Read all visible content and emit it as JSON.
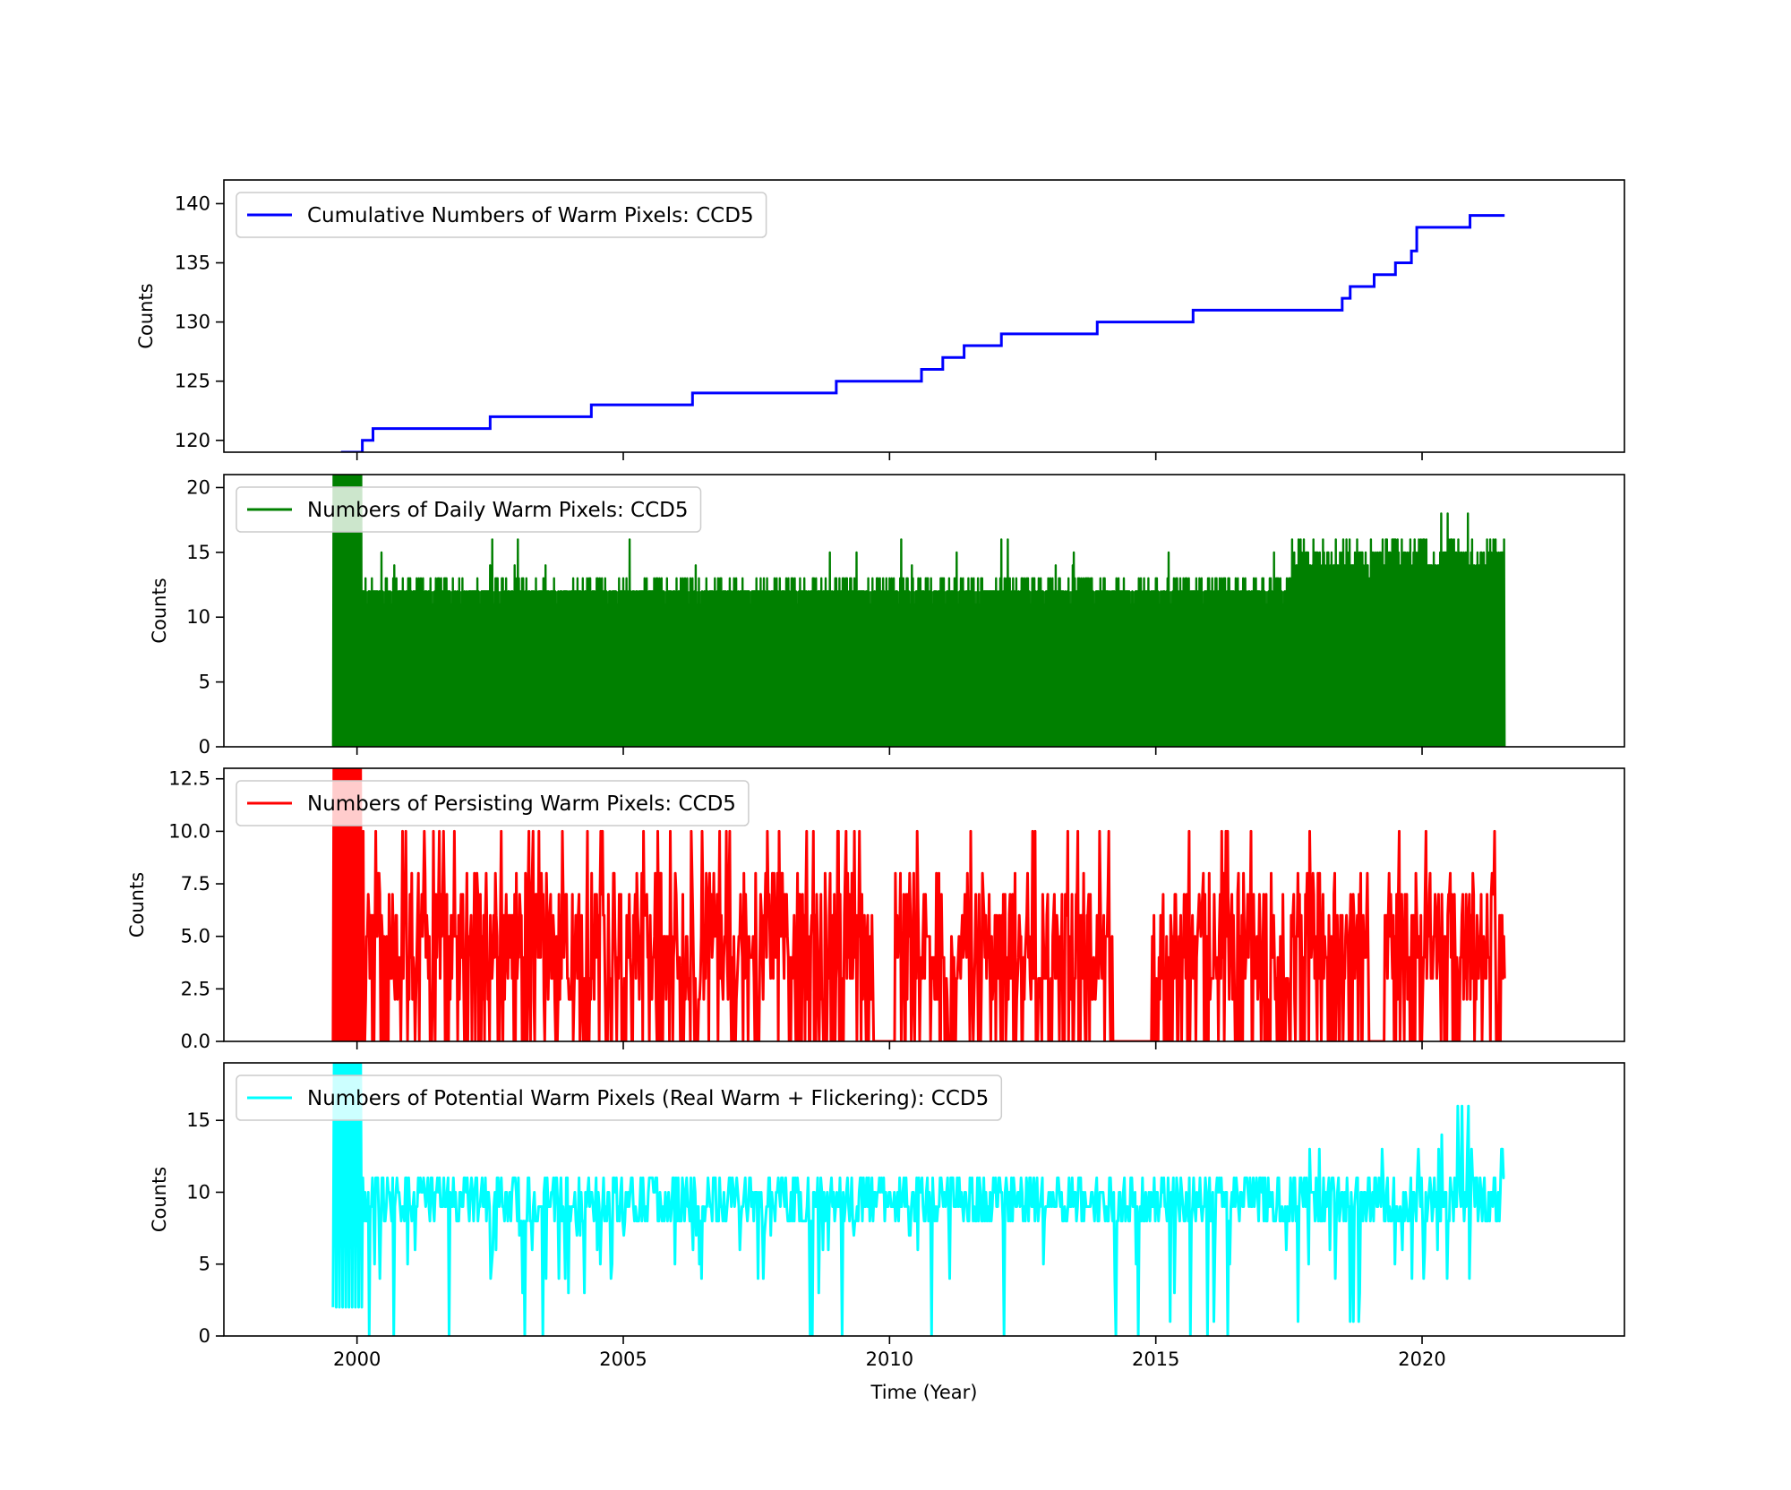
{
  "chart_data": [
    {
      "type": "line",
      "title": "",
      "xlabel": "",
      "ylabel": "Counts",
      "xlim": [
        1997.5,
        2023.8
      ],
      "ylim": [
        119,
        142
      ],
      "yticks": [
        120,
        125,
        130,
        135,
        140
      ],
      "ytick_labels": [
        "120",
        "125",
        "130",
        "135",
        "140"
      ],
      "xticks": [
        2000,
        2005,
        2010,
        2015,
        2020
      ],
      "show_xtick_labels": false,
      "grid": false,
      "legend_position": "top-left",
      "series": [
        {
          "name": "Cumulative Numbers of Warm Pixels: CCD5",
          "color": "#0000ff",
          "step": true,
          "x": [
            1999.7,
            2000.1,
            2000.3,
            2002.5,
            2004.4,
            2006.3,
            2009.0,
            2010.6,
            2011.0,
            2011.4,
            2012.1,
            2013.9,
            2015.7,
            2018.5,
            2018.65,
            2019.1,
            2019.5,
            2019.8,
            2019.9,
            2020.9,
            2021.55
          ],
          "values": [
            119,
            120,
            121,
            122,
            123,
            124,
            125,
            126,
            127,
            128,
            129,
            130,
            131,
            132,
            133,
            134,
            135,
            136,
            138,
            139,
            139
          ]
        }
      ]
    },
    {
      "type": "line",
      "title": "",
      "xlabel": "",
      "ylabel": "Counts",
      "xlim": [
        1997.5,
        2023.8
      ],
      "ylim": [
        0,
        21
      ],
      "yticks": [
        0,
        5,
        10,
        15,
        20
      ],
      "ytick_labels": [
        "0",
        "5",
        "10",
        "15",
        "20"
      ],
      "xticks": [
        2000,
        2005,
        2010,
        2015,
        2020
      ],
      "show_xtick_labels": false,
      "grid": false,
      "legend_position": "top-left",
      "series": [
        {
          "name": "Numbers of Daily Warm Pixels: CCD5",
          "color": "#008000",
          "dense": true,
          "x_start": 1999.55,
          "x_end": 2021.55,
          "n": 2200,
          "base_peak": 12,
          "early_peak": 21,
          "early_until": 2000.1,
          "late_start": 2017.5,
          "late_peak": 15,
          "spike_max": 18
        }
      ]
    },
    {
      "type": "line",
      "title": "",
      "xlabel": "",
      "ylabel": "Counts",
      "xlim": [
        1997.5,
        2023.8
      ],
      "ylim": [
        0,
        13
      ],
      "yticks": [
        0.0,
        2.5,
        5.0,
        7.5,
        10.0,
        12.5
      ],
      "ytick_labels": [
        "0.0",
        "2.5",
        "5.0",
        "7.5",
        "10.0",
        "12.5"
      ],
      "xticks": [
        2000,
        2005,
        2010,
        2015,
        2020
      ],
      "show_xtick_labels": false,
      "grid": false,
      "legend_position": "top-left",
      "series": [
        {
          "name": "Numbers of Persisting Warm Pixels: CCD5",
          "color": "#ff0000",
          "dense": true,
          "x_start": 1999.55,
          "x_end": 2021.55,
          "n": 1400,
          "typical_range": [
            0,
            9
          ],
          "max_value": 10,
          "early_peak": 13
        }
      ]
    },
    {
      "type": "line",
      "title": "",
      "xlabel": "Time (Year)",
      "ylabel": "Counts",
      "xlim": [
        1997.5,
        2023.8
      ],
      "ylim": [
        0,
        19
      ],
      "yticks": [
        0,
        5,
        10,
        15
      ],
      "ytick_labels": [
        "0",
        "5",
        "10",
        "15"
      ],
      "xticks": [
        2000,
        2005,
        2010,
        2015,
        2020
      ],
      "xtick_labels": [
        "2000",
        "2005",
        "2010",
        "2015",
        "2020"
      ],
      "show_xtick_labels": true,
      "grid": false,
      "legend_position": "top-left",
      "series": [
        {
          "name": "Numbers of Potential Warm Pixels (Real Warm + Flickering): CCD5",
          "color": "#00ffff",
          "dense": true,
          "x_start": 1999.55,
          "x_end": 2021.55,
          "n": 1100,
          "typical_value": 9.5,
          "early_peak": 19,
          "max_late": 16
        }
      ]
    }
  ]
}
